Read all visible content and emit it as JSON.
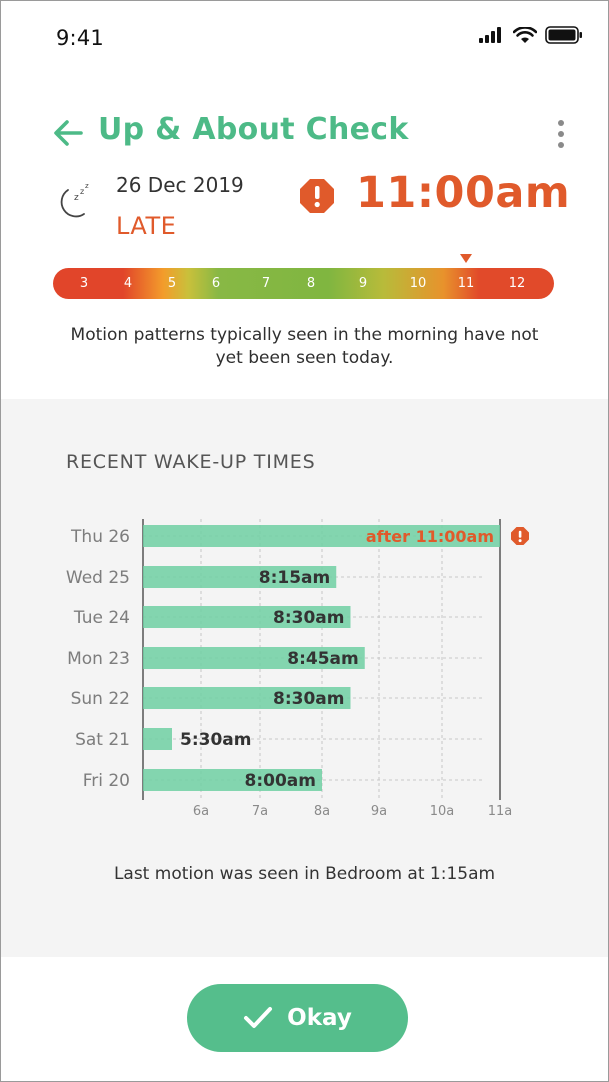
{
  "status_bar": {
    "time": "9:41"
  },
  "header": {
    "title": "Up & About Check"
  },
  "summary": {
    "date": "26 Dec 2019",
    "status": "LATE",
    "time": "11:00am"
  },
  "scale": {
    "ticks": [
      "3",
      "4",
      "5",
      "6",
      "7",
      "8",
      "9",
      "10",
      "11",
      "12"
    ],
    "marker_value": 11
  },
  "description": "Motion patterns typically seen in the morning have not yet been seen today.",
  "recent": {
    "title": "RECENT WAKE-UP TIMES",
    "last_motion": "Last motion was seen in Bedroom at 1:15am"
  },
  "chart_data": {
    "type": "bar",
    "orientation": "horizontal",
    "categories": [
      "Thu 26",
      "Wed 25",
      "Tue 24",
      "Mon 23",
      "Sun 22",
      "Sat 21",
      "Fri 20"
    ],
    "values": [
      11.0,
      8.25,
      8.5,
      8.75,
      8.5,
      5.5,
      8.0
    ],
    "labels": [
      "after 11:00am",
      "8:15am",
      "8:30am",
      "8:45am",
      "8:30am",
      "5:30am",
      "8:00am"
    ],
    "alert": [
      true,
      false,
      false,
      false,
      false,
      false,
      false
    ],
    "x_ticks": [
      6,
      7,
      8,
      9,
      10,
      11
    ],
    "x_tick_labels": [
      "6a",
      "7a",
      "8a",
      "9a",
      "10a",
      "11a"
    ],
    "xlim": [
      5,
      11
    ],
    "grid": "vertical dashed",
    "colors": {
      "bar": "#6fcfa2",
      "alert_text": "#e05a2b",
      "label": "#333333"
    }
  },
  "footer": {
    "okay_label": "Okay"
  },
  "colors": {
    "accent": "#4dba87",
    "late": "#e05a2b",
    "button": "#55be8c"
  }
}
